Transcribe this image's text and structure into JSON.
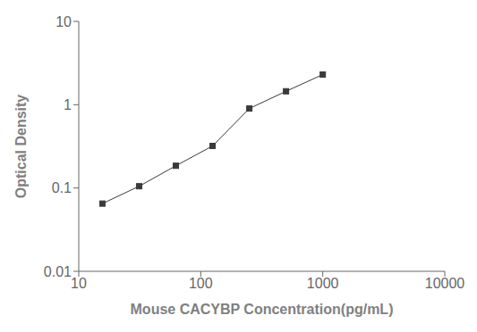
{
  "chart_data": {
    "type": "line",
    "x": [
      15.625,
      31.25,
      62.5,
      125,
      250,
      500,
      1000
    ],
    "values": [
      0.065,
      0.105,
      0.185,
      0.32,
      0.9,
      1.45,
      2.3
    ],
    "xlabel": "Mouse CACYBP Concentration(pg/mL)",
    "ylabel": "Optical Density",
    "xlim": [
      10,
      10000
    ],
    "ylim": [
      0.01,
      10
    ],
    "xticks": [
      10,
      100,
      1000,
      10000
    ],
    "yticks": [
      0.01,
      0.1,
      1,
      10
    ],
    "log": true,
    "color": "#3a3a3a",
    "marker": "square",
    "grid": false
  }
}
